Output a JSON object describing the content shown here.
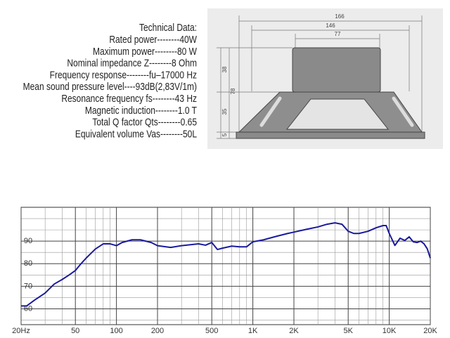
{
  "specs": {
    "title": "Technical Data:",
    "lines": [
      "Rated power--------40W",
      "Maximum power--------80 W",
      "Nominal impedance Z--------8 Ohm",
      "Frequency response--------fu–17000 Hz",
      "Mean sound pressure level----93dB(2,83V/1m)",
      "Resonance frequency fs--------43 Hz",
      "Magnetic induction--------1.0 T",
      "Total Q factor Qts--------0.65",
      "Equivalent volume Vas--------50L"
    ]
  },
  "diagram": {
    "dimensions": [
      "166",
      "146",
      "77",
      "38",
      "78",
      "35",
      "5"
    ]
  },
  "chart_data": {
    "type": "line",
    "log_x": true,
    "grid": true,
    "x": [
      20,
      22,
      25,
      30,
      35,
      40,
      45,
      50,
      55,
      60,
      70,
      80,
      90,
      100,
      110,
      130,
      150,
      180,
      200,
      250,
      300,
      400,
      450,
      500,
      550,
      600,
      700,
      800,
      900,
      1000,
      1200,
      1500,
      1800,
      2000,
      2500,
      3000,
      3500,
      4000,
      4500,
      5000,
      5500,
      6000,
      7000,
      8000,
      9000,
      9500,
      10000,
      11000,
      12000,
      13000,
      14000,
      15000,
      16000,
      17000,
      18000,
      19000,
      20000
    ],
    "series": [
      {
        "name": "SPL",
        "color": "#1a1a9c",
        "values": [
          61.3,
          61.3,
          63.8,
          67,
          71,
          73,
          75,
          77,
          80,
          82.5,
          86.5,
          88.8,
          88.8,
          88,
          89.4,
          90.6,
          90.6,
          89.4,
          88,
          87.2,
          88,
          88.8,
          88.2,
          89.4,
          86.3,
          86.9,
          87.8,
          87.5,
          87.5,
          89.7,
          90.6,
          92.2,
          93.4,
          94,
          95.3,
          96.3,
          97.5,
          98.1,
          97.5,
          94.4,
          93.4,
          93.4,
          94.4,
          95.9,
          96.9,
          96.9,
          93.4,
          88.1,
          91.3,
          90.3,
          91.9,
          89.7,
          89.4,
          90,
          88.8,
          86.6,
          82.5
        ]
      }
    ],
    "xlim": [
      20,
      20000
    ],
    "ylim": [
      53,
      105
    ],
    "xticks": [
      {
        "value": 20,
        "label": "20Hz"
      },
      50,
      100,
      200,
      500,
      {
        "value": 1000,
        "label": "1K"
      },
      {
        "value": 2000,
        "label": "2K"
      },
      {
        "value": 5000,
        "label": "5K"
      },
      {
        "value": 10000,
        "label": "10K"
      },
      {
        "value": 20000,
        "label": "20K"
      }
    ],
    "yticks": [
      60,
      70,
      80,
      90
    ],
    "xgrid": [
      30,
      40,
      60,
      70,
      80,
      90,
      300,
      400,
      600,
      700,
      800,
      900,
      3000,
      4000,
      6000,
      7000,
      8000,
      9000
    ],
    "ygrid": [
      55,
      65,
      75,
      85,
      95,
      100
    ]
  }
}
